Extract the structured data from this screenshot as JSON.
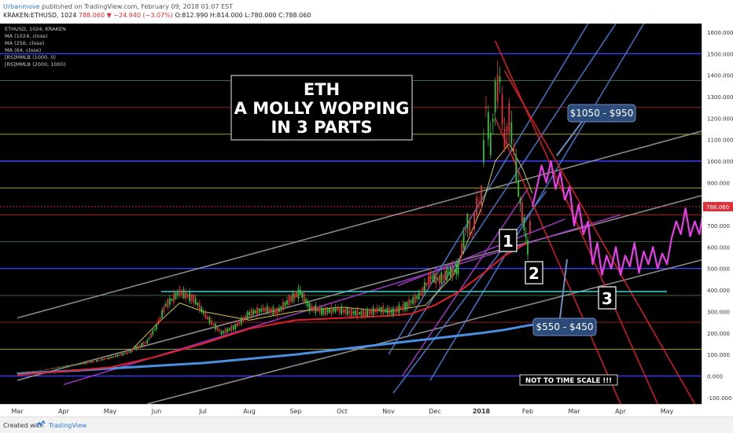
{
  "header": {
    "author": "Urbanmove",
    "published": "published on TradingView.com, February 09, 2018 01:07 EST",
    "symbol": "KRAKEN:ETHUSD, 1024",
    "change": "788.060 ▼ −24.940 (−3.07%)",
    "ohlc": "O:812.990 H:814.000 L:780.000 C:788.060"
  },
  "legend": [
    "ETHUSD, 1024, KRAKEN",
    "MA (1024, close)",
    "MA (256, close)",
    "MA (64, close)",
    "[RS]MMLB (1000, 0)",
    "[RS]MMLB (2000, 1000)"
  ],
  "footer": {
    "created": "Created with",
    "brand": "TradingView"
  },
  "chart_data": {
    "type": "line",
    "background": "#000000",
    "ylim": [
      -130,
      1640
    ],
    "y_ticks": [
      -100,
      0,
      100,
      200,
      300,
      400,
      500,
      600,
      700,
      800,
      900,
      1000,
      1100,
      1200,
      1300,
      1400,
      1500,
      1600
    ],
    "y_tick_labels": [
      "-100.000",
      "0.000",
      "100.000",
      "200.000",
      "300.000",
      "400.000",
      "500.000",
      "600.000",
      "700.000",
      "800.000",
      "900.000",
      "1000.000",
      "1100.000",
      "1200.000",
      "1300.000",
      "1400.000",
      "1500.000",
      "1600.000"
    ],
    "x_ticks": [
      "Mar",
      "Apr",
      "May",
      "Jun",
      "Jul",
      "Aug",
      "Sep",
      "Oct",
      "Nov",
      "Dec",
      "2018",
      "Feb",
      "Mar",
      "Apr",
      "May"
    ],
    "x_tick_months": [
      0,
      1,
      2,
      3,
      4,
      5,
      6,
      7,
      8,
      9,
      10,
      11,
      12,
      13,
      14
    ],
    "last_price": 788.06,
    "last_price_label": "788.060",
    "last_price_color": "#e0303a",
    "horizontal_levels": [
      {
        "y": 1500,
        "color": "#3a3aff"
      },
      {
        "y": 1375,
        "color": "#3e7d3e"
      },
      {
        "y": 1250,
        "color": "#b02020"
      },
      {
        "y": 1125,
        "color": "#b5b540"
      },
      {
        "y": 1000,
        "color": "#3a3aff"
      },
      {
        "y": 875,
        "color": "#b5b540"
      },
      {
        "y": 750,
        "color": "#b02020"
      },
      {
        "y": 625,
        "color": "#3e7d3e"
      },
      {
        "y": 500,
        "color": "#3a3aff"
      },
      {
        "y": 375,
        "color": "#3e7d3e"
      },
      {
        "y": 250,
        "color": "#b02020"
      },
      {
        "y": 125,
        "color": "#b5b540"
      },
      {
        "y": 0,
        "color": "#3a3aff"
      }
    ],
    "support_line": {
      "from": [
        3.1,
        393
      ],
      "to": [
        14.0,
        393
      ],
      "color": "#38d6d6"
    },
    "price_series": {
      "name": "ETHUSD",
      "x": [
        0,
        0.5,
        1,
        1.5,
        2,
        2.4,
        2.8,
        3.0,
        3.2,
        3.5,
        3.8,
        4.1,
        4.4,
        4.7,
        5.0,
        5.3,
        5.6,
        5.9,
        6.1,
        6.3,
        6.6,
        6.9,
        7.2,
        7.5,
        7.8,
        8.1,
        8.4,
        8.7,
        8.9,
        9.1,
        9.3,
        9.5,
        9.7,
        9.8,
        9.9,
        10.0,
        10.1,
        10.2,
        10.3,
        10.4,
        10.5,
        10.6,
        10.7,
        10.8,
        11.0,
        11.1
      ],
      "y": [
        15,
        25,
        45,
        60,
        85,
        110,
        160,
        230,
        330,
        390,
        360,
        270,
        200,
        230,
        290,
        310,
        300,
        360,
        390,
        320,
        300,
        310,
        295,
        290,
        310,
        300,
        330,
        380,
        460,
        450,
        480,
        500,
        720,
        650,
        790,
        840,
        1250,
        1080,
        1300,
        1380,
        1100,
        1200,
        1060,
        870,
        600,
        788
      ]
    },
    "projection": {
      "name": "projection",
      "color": "#e83ee8",
      "x": [
        11.1,
        11.2,
        11.3,
        11.4,
        11.5,
        11.6,
        11.7,
        11.8,
        11.9,
        12.0,
        12.1,
        12.2,
        12.3,
        12.4,
        12.5,
        12.6,
        12.7,
        12.8,
        12.9,
        13.0,
        13.1,
        13.2,
        13.3,
        13.4,
        13.5,
        13.6,
        13.7,
        13.8,
        13.9,
        14.0,
        14.1,
        14.2,
        14.3,
        14.4,
        14.5,
        14.6,
        14.7,
        14.8
      ],
      "y": [
        788,
        880,
        980,
        900,
        1000,
        870,
        950,
        820,
        880,
        700,
        800,
        660,
        720,
        520,
        620,
        470,
        560,
        500,
        600,
        470,
        560,
        510,
        620,
        480,
        580,
        520,
        600,
        500,
        570,
        520,
        640,
        720,
        660,
        780,
        650,
        720,
        660,
        790
      ]
    },
    "ma_1024": {
      "color": "#4a90e2",
      "x": [
        0,
        2,
        4,
        6,
        8,
        9,
        10,
        10.5,
        11,
        11.3
      ],
      "y": [
        10,
        35,
        60,
        100,
        150,
        175,
        200,
        215,
        235,
        245
      ]
    },
    "ma_256": {
      "color": "#e0202a",
      "x": [
        0,
        2,
        3,
        4,
        5,
        6,
        7,
        8,
        8.5,
        9,
        9.5,
        10,
        10.5,
        11
      ],
      "y": [
        5,
        40,
        90,
        150,
        220,
        260,
        270,
        280,
        290,
        330,
        390,
        470,
        560,
        620
      ]
    },
    "ma_64": {
      "color": "#d4c84a",
      "x": [
        2.5,
        3,
        3.5,
        4,
        5,
        6,
        7,
        8,
        8.8,
        9.4,
        10,
        10.3,
        10.6,
        10.9,
        11.1
      ],
      "y": [
        130,
        240,
        340,
        300,
        260,
        300,
        320,
        300,
        330,
        470,
        780,
        1000,
        1080,
        960,
        850
      ]
    },
    "trend_lines": [
      {
        "color": "#999999",
        "from": [
          0,
          270
        ],
        "to": [
          15.1,
          1160
        ]
      },
      {
        "color": "#999999",
        "from": [
          0,
          -20
        ],
        "to": [
          15.1,
          860
        ]
      },
      {
        "color": "#999999",
        "from": [
          2.8,
          -130
        ],
        "to": [
          15.1,
          560
        ]
      },
      {
        "color": "#a63cc8",
        "from": [
          1.0,
          -40
        ],
        "to": [
          13.0,
          750
        ]
      },
      {
        "color": "#a63cc8",
        "from": [
          8.2,
          420
        ],
        "to": [
          11.8,
          730
        ]
      },
      {
        "color": "#a63cc8",
        "from": [
          8.3,
          0
        ],
        "to": [
          11.0,
          870
        ]
      },
      {
        "color": "#4a7bd0",
        "from": [
          8.4,
          180
        ],
        "to": [
          12.9,
          1640
        ]
      },
      {
        "color": "#4a7bd0",
        "from": [
          8.0,
          100
        ],
        "to": [
          12.3,
          1640
        ]
      },
      {
        "color": "#4a7bd0",
        "from": [
          8.9,
          -20
        ],
        "to": [
          13.5,
          1640
        ]
      },
      {
        "color": "#4a7bd0",
        "from": [
          8.1,
          -80
        ],
        "to": [
          11.4,
          860
        ]
      },
      {
        "color": "#e0202a",
        "from": [
          10.3,
          1560
        ],
        "to": [
          13.8,
          -130
        ]
      },
      {
        "color": "#e0202a",
        "from": [
          10.5,
          1420
        ],
        "to": [
          14.6,
          -130
        ]
      },
      {
        "color": "#e0202a",
        "from": [
          10.3,
          1200
        ],
        "to": [
          13.0,
          -130
        ]
      }
    ]
  },
  "annotations": {
    "title_lines": [
      "ETH",
      "A MOLLY WOPPING",
      "IN 3 PARTS"
    ],
    "target_top": "$1050 - $950",
    "target_bottom": "$550 - $450",
    "part_labels": [
      "1",
      "2",
      "3"
    ],
    "note": "NOT TO TIME SCALE !!!"
  }
}
